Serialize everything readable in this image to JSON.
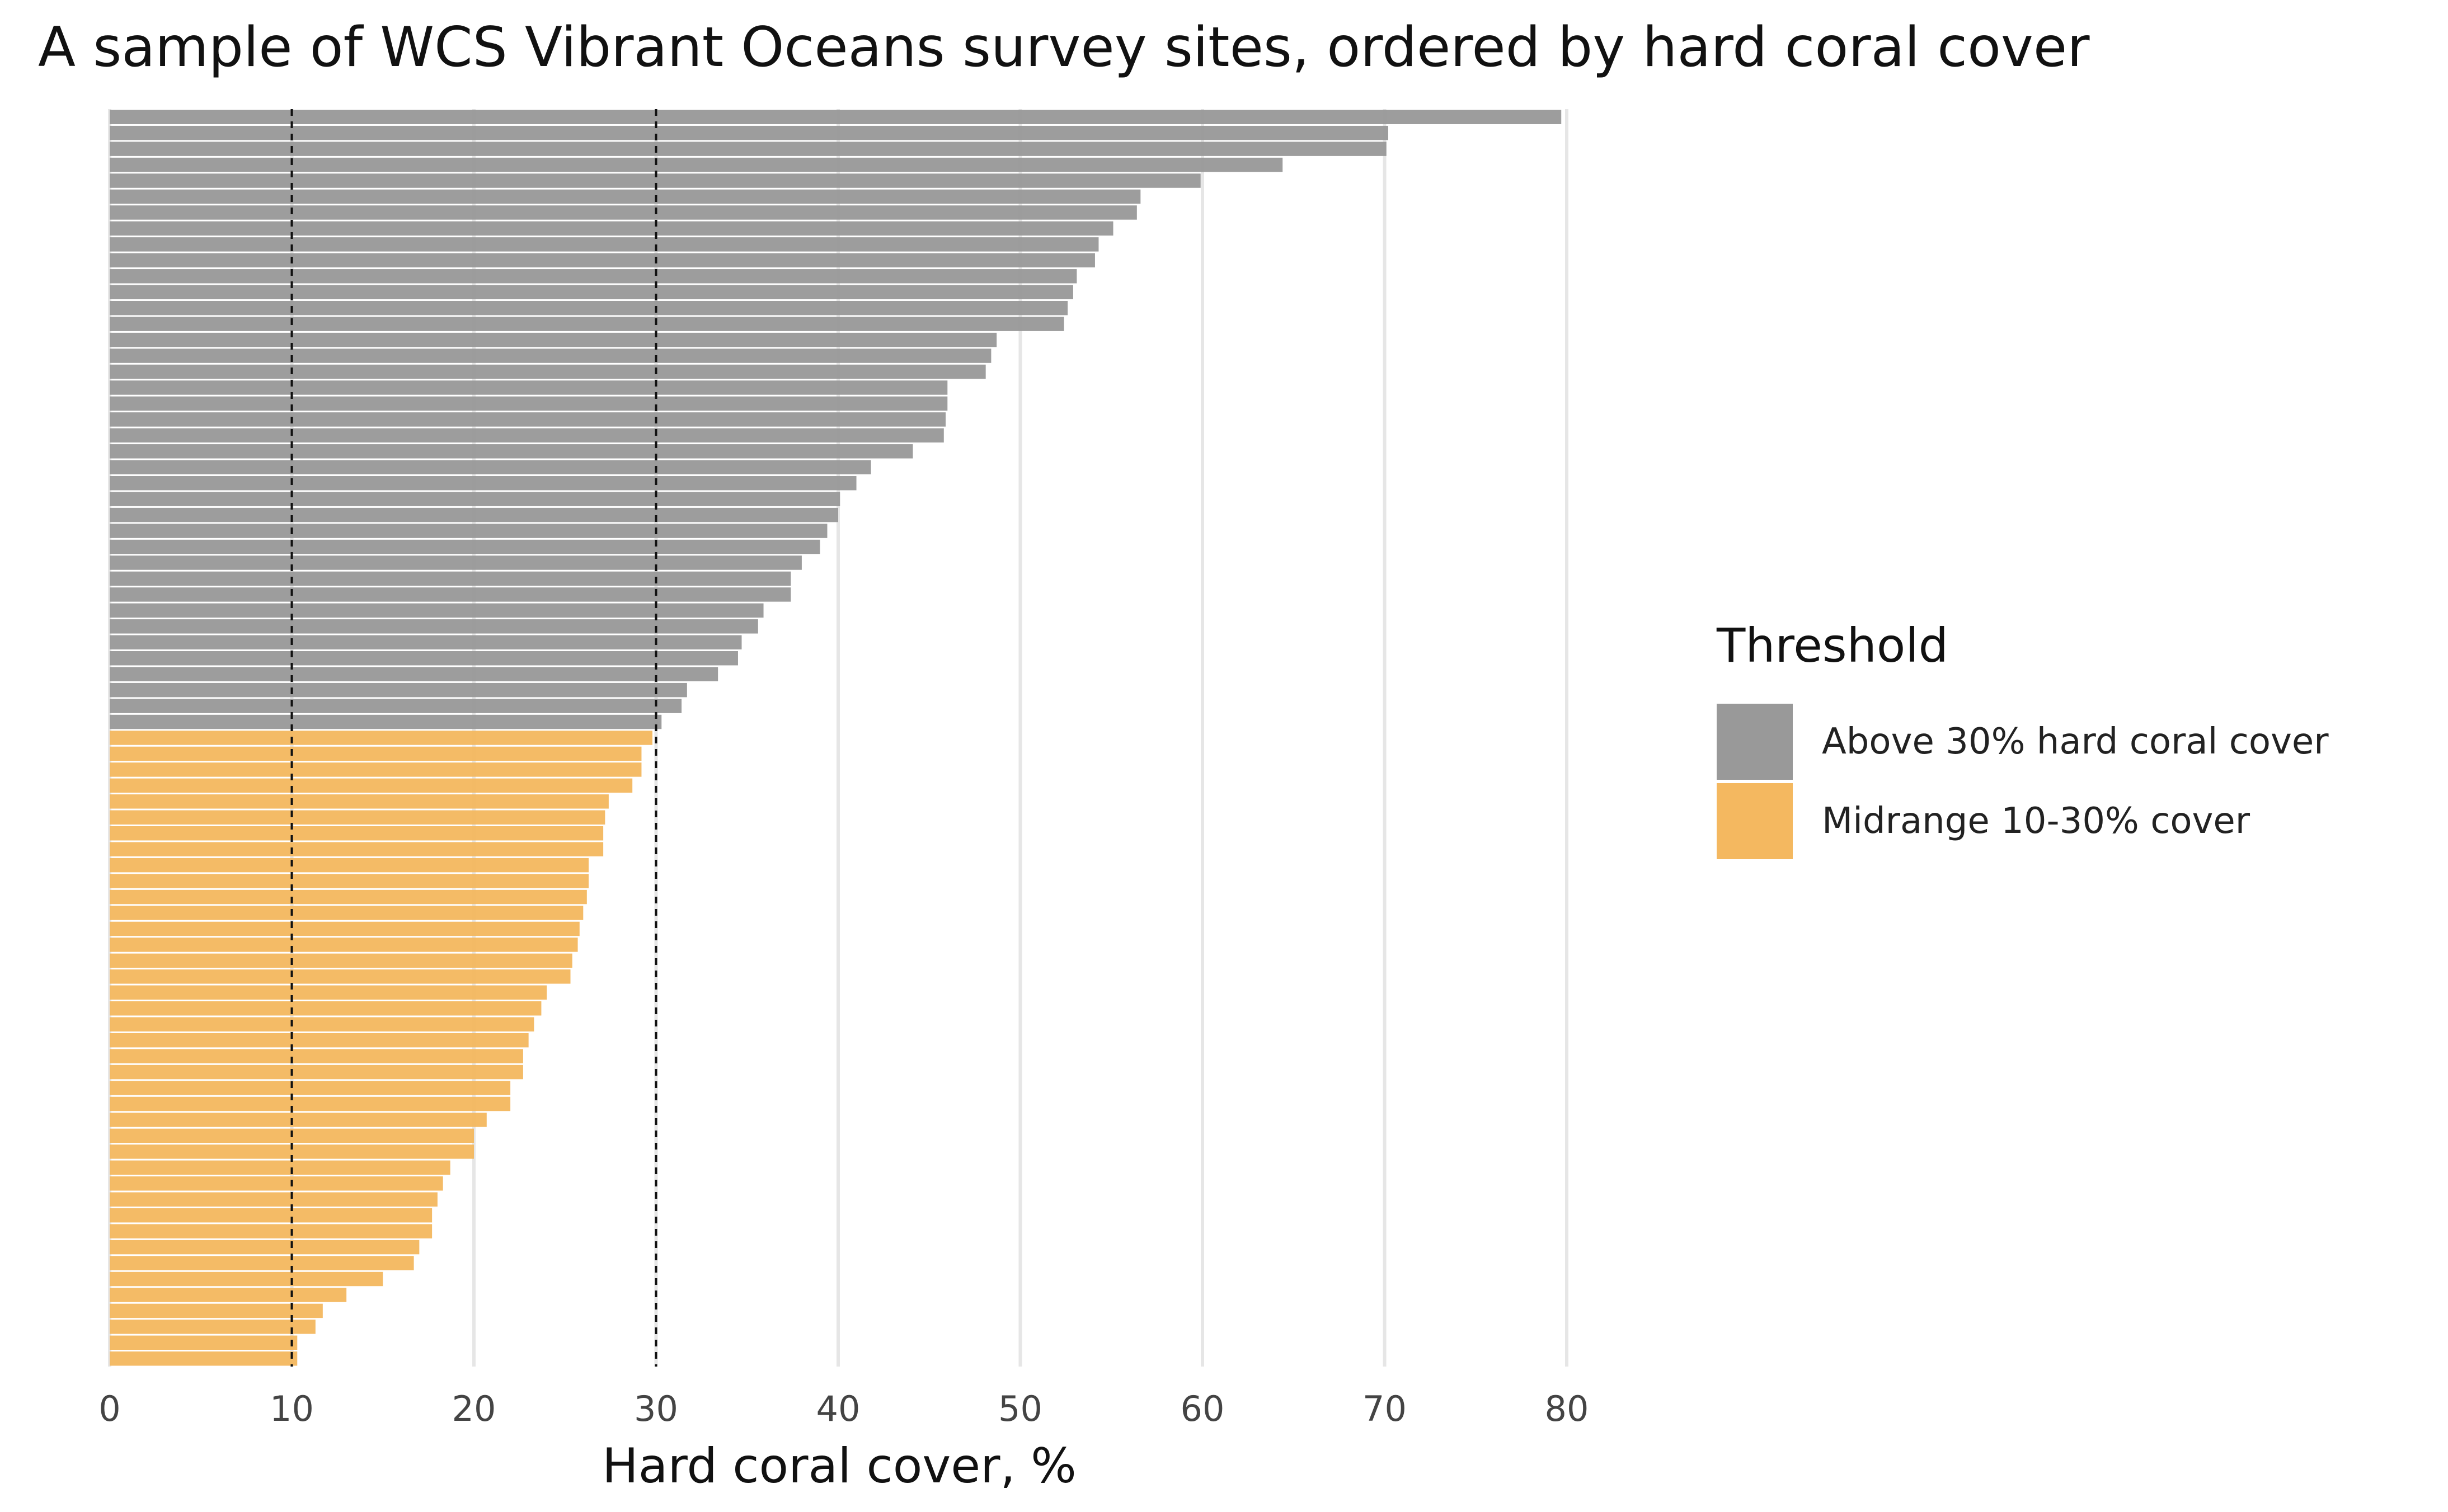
{
  "chart_data": {
    "type": "bar",
    "orientation": "horizontal",
    "title": "A sample of WCS Vibrant Oceans survey sites, ordered by hard coral cover",
    "xlabel": "Hard coral cover, %",
    "ylabel": "",
    "xlim": [
      0,
      80
    ],
    "xticks": [
      0,
      10,
      20,
      30,
      40,
      50,
      60,
      70,
      80
    ],
    "reference_lines": [
      10,
      30
    ],
    "grid": "vertical major gridlines",
    "legend_title": "Threshold",
    "legend_position": "right",
    "series": [
      {
        "name": "Above 30% hard coral cover",
        "color": "#999999",
        "values": [
          79.7,
          70.2,
          70.1,
          64.4,
          59.9,
          56.6,
          56.4,
          55.1,
          54.3,
          54.1,
          53.1,
          52.9,
          52.6,
          52.4,
          48.7,
          48.4,
          48.1,
          46.0,
          46.0,
          45.9,
          45.8,
          44.1,
          41.8,
          41.0,
          40.1,
          40.0,
          39.4,
          39.0,
          38.0,
          37.4,
          37.4,
          35.9,
          35.6,
          34.7,
          34.5,
          33.4,
          31.7,
          31.4,
          30.3
        ]
      },
      {
        "name": "Midrange 10-30% cover",
        "color": "#F4B860",
        "values": [
          29.8,
          29.2,
          29.2,
          28.7,
          27.4,
          27.2,
          27.1,
          27.1,
          26.3,
          26.3,
          26.2,
          26.0,
          25.8,
          25.7,
          25.4,
          25.3,
          24.0,
          23.7,
          23.3,
          23.0,
          22.7,
          22.7,
          22.0,
          22.0,
          20.7,
          20.0,
          20.0,
          18.7,
          18.3,
          18.0,
          17.7,
          17.7,
          17.0,
          16.7,
          15.0,
          13.0,
          11.7,
          11.3,
          10.3,
          10.3
        ]
      }
    ]
  }
}
